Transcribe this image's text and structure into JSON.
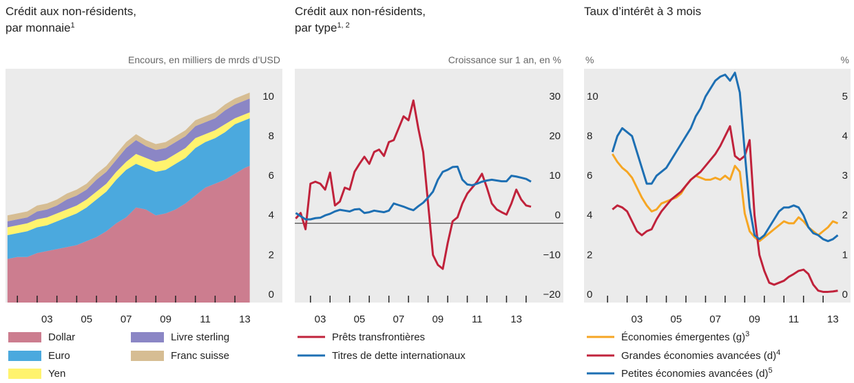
{
  "chart_data": [
    {
      "type": "stacked_area",
      "title": [
        "Crédit aux non-résidents,",
        "par monnaie"
      ],
      "title_footnote": "1",
      "y_label": "Encours, en milliers de mrds d’USD",
      "x": [
        1.5,
        2,
        2.5,
        3,
        3.5,
        4,
        4.5,
        5,
        5.5,
        6,
        6.5,
        7,
        7.5,
        8,
        8.5,
        9,
        9.5,
        10,
        10.5,
        11,
        11.5,
        12,
        12.5,
        13,
        13.5,
        13.75
      ],
      "series": [
        {
          "name": "Dollar",
          "color": "#cc7d8f",
          "values": [
            2.2,
            2.3,
            2.3,
            2.5,
            2.6,
            2.7,
            2.8,
            2.9,
            3.1,
            3.3,
            3.6,
            4.0,
            4.3,
            4.8,
            4.7,
            4.4,
            4.5,
            4.7,
            5.0,
            5.4,
            5.8,
            6.0,
            6.2,
            6.5,
            6.8,
            6.9
          ]
        },
        {
          "name": "Euro",
          "color": "#4ba9de",
          "values": [
            1.2,
            1.2,
            1.3,
            1.3,
            1.3,
            1.4,
            1.5,
            1.6,
            1.7,
            1.9,
            2.0,
            2.2,
            2.4,
            2.2,
            2.1,
            2.2,
            2.2,
            2.3,
            2.3,
            2.4,
            2.3,
            2.3,
            2.4,
            2.5,
            2.4,
            2.4
          ]
        },
        {
          "name": "Yen",
          "color": "#fff36e",
          "values": [
            0.4,
            0.4,
            0.4,
            0.4,
            0.4,
            0.4,
            0.4,
            0.4,
            0.4,
            0.4,
            0.4,
            0.4,
            0.4,
            0.5,
            0.5,
            0.5,
            0.5,
            0.5,
            0.5,
            0.5,
            0.4,
            0.4,
            0.4,
            0.3,
            0.3,
            0.3
          ]
        },
        {
          "name": "Livre sterling",
          "color": "#8b86c5",
          "values": [
            0.3,
            0.3,
            0.3,
            0.4,
            0.4,
            0.4,
            0.5,
            0.5,
            0.5,
            0.6,
            0.6,
            0.6,
            0.7,
            0.7,
            0.6,
            0.6,
            0.6,
            0.6,
            0.6,
            0.6,
            0.6,
            0.6,
            0.7,
            0.7,
            0.7,
            0.7
          ]
        },
        {
          "name": "Franc suisse",
          "color": "#d6bd93",
          "values": [
            0.3,
            0.3,
            0.3,
            0.3,
            0.3,
            0.3,
            0.3,
            0.3,
            0.3,
            0.3,
            0.3,
            0.3,
            0.3,
            0.3,
            0.3,
            0.3,
            0.3,
            0.3,
            0.3,
            0.3,
            0.3,
            0.3,
            0.3,
            0.3,
            0.3,
            0.3
          ]
        }
      ],
      "xlim": [
        1.4,
        15.4
      ],
      "ylim": [
        0,
        11.8
      ],
      "xticks": [
        {
          "value": 3.5,
          "label": "03"
        },
        {
          "value": 5.5,
          "label": "05"
        },
        {
          "value": 7.5,
          "label": "07"
        },
        {
          "value": 9.5,
          "label": "09"
        },
        {
          "value": 11.5,
          "label": "11"
        },
        {
          "value": 13.5,
          "label": "13"
        }
      ],
      "xminorticks": [
        2,
        3,
        4,
        5,
        6,
        7,
        8,
        9,
        10,
        11,
        12,
        13
      ],
      "yticks": [
        0,
        2,
        4,
        6,
        8,
        10
      ]
    },
    {
      "type": "line",
      "title": [
        "Crédit aux non-résidents,",
        "par type"
      ],
      "title_footnote": "1, 2",
      "y_label": "Croissance sur 1 an, en %",
      "x": [
        2.25,
        2.5,
        2.75,
        3,
        3.25,
        3.5,
        3.75,
        4,
        4.25,
        4.5,
        4.75,
        5,
        5.25,
        5.5,
        5.75,
        6,
        6.25,
        6.5,
        6.75,
        7,
        7.25,
        7.5,
        7.75,
        8,
        8.25,
        8.5,
        8.75,
        9,
        9.25,
        9.5,
        9.75,
        10,
        10.25,
        10.5,
        10.75,
        11,
        11.25,
        11.5,
        11.75,
        12,
        12.25,
        12.5,
        12.75,
        13,
        13.25,
        13.5,
        13.75,
        14,
        14.25
      ],
      "series": [
        {
          "name": "Prêts transfrontières",
          "color": "#c0223b",
          "values": [
            1.2,
            2.6,
            -1.5,
            10,
            10.5,
            10,
            8.5,
            12.8,
            4.5,
            5.5,
            9,
            8.5,
            13,
            15,
            16.8,
            15,
            18,
            18.6,
            17,
            20.5,
            21,
            24,
            27,
            26,
            31,
            24,
            18,
            5,
            -8,
            -10.5,
            -11.5,
            -5,
            0.5,
            1.5,
            5,
            7.5,
            9,
            10.5,
            12.5,
            9,
            5,
            3.5,
            2.8,
            2.2,
            5,
            8.5,
            6,
            4.5,
            4.2
          ]
        },
        {
          "name": "Titres de dette internationaux",
          "color": "#1d6fb3",
          "values": [
            2.6,
            1.8,
            1.0,
            1.0,
            1.3,
            1.4,
            2.0,
            2.4,
            3.0,
            3.4,
            3.2,
            3.0,
            3.5,
            3.6,
            2.6,
            2.8,
            3.2,
            3.0,
            2.8,
            3.2,
            5.0,
            4.6,
            4.2,
            3.7,
            3.3,
            4.3,
            5.2,
            6.5,
            8.0,
            11,
            13,
            13.5,
            14.2,
            14.3,
            11,
            9.8,
            9.6,
            10,
            10.5,
            10.8,
            11,
            10.8,
            10.6,
            10.6,
            12,
            11.8,
            11.5,
            11.2,
            10.5
          ]
        }
      ],
      "xlim": [
        2.2,
        15.9
      ],
      "ylim": [
        -20,
        39
      ],
      "zero_line": true,
      "xticks": [
        {
          "value": 3.5,
          "label": "03"
        },
        {
          "value": 5.5,
          "label": "05"
        },
        {
          "value": 7.5,
          "label": "07"
        },
        {
          "value": 9.5,
          "label": "09"
        },
        {
          "value": 11.5,
          "label": "11"
        },
        {
          "value": 13.5,
          "label": "13"
        }
      ],
      "xminorticks": [
        3,
        4,
        5,
        6,
        7,
        8,
        9,
        10,
        11,
        12,
        13,
        14
      ],
      "yticks": [
        {
          "value": -20,
          "label": "−20"
        },
        {
          "value": -10,
          "label": "−10"
        },
        0,
        10,
        20,
        30
      ]
    },
    {
      "type": "line",
      "title": [
        "Taux d’intérêt à 3 mois"
      ],
      "y_label": "%",
      "y2_label": "%",
      "x": [
        2.25,
        2.5,
        2.75,
        3,
        3.25,
        3.5,
        3.75,
        4,
        4.25,
        4.5,
        4.75,
        5,
        5.25,
        5.5,
        5.75,
        6,
        6.25,
        6.5,
        6.75,
        7,
        7.25,
        7.5,
        7.75,
        8,
        8.25,
        8.5,
        8.75,
        9,
        9.25,
        9.5,
        9.75,
        10,
        10.25,
        10.5,
        10.75,
        11,
        11.25,
        11.5,
        11.75,
        12,
        12.25,
        12.5,
        12.75,
        13,
        13.25,
        13.5,
        13.75
      ],
      "series": [
        {
          "name": "Économies émergentes (g)",
          "footnote": "3",
          "color": "#f6a623",
          "values": [
            7.5,
            7.1,
            6.8,
            6.6,
            6.3,
            5.8,
            5.3,
            4.9,
            4.6,
            4.7,
            5.0,
            5.1,
            5.2,
            5.3,
            5.5,
            5.9,
            6.2,
            6.4,
            6.3,
            6.2,
            6.2,
            6.3,
            6.2,
            6.4,
            6.2,
            6.9,
            6.6,
            4.5,
            3.6,
            3.3,
            3.1,
            3.3,
            3.5,
            3.7,
            3.9,
            4.1,
            4.0,
            4.0,
            4.3,
            4.1,
            3.8,
            3.6,
            3.4,
            3.6,
            3.8,
            4.1,
            4.0
          ]
        },
        {
          "name": "Grandes économies avancées (d)",
          "footnote": "4",
          "color": "#c0223b",
          "axis": "y2",
          "values": [
            2.35,
            2.45,
            2.4,
            2.3,
            2.05,
            1.8,
            1.7,
            1.8,
            1.85,
            2.1,
            2.3,
            2.45,
            2.6,
            2.7,
            2.8,
            2.95,
            3.1,
            3.2,
            3.3,
            3.45,
            3.6,
            3.75,
            3.95,
            4.2,
            4.45,
            3.7,
            3.6,
            3.7,
            4.1,
            2.2,
            1.2,
            0.8,
            0.5,
            0.45,
            0.5,
            0.55,
            0.65,
            0.72,
            0.8,
            0.83,
            0.72,
            0.45,
            0.3,
            0.27,
            0.27,
            0.28,
            0.3
          ]
        },
        {
          "name": "Petites économies avancées (d)",
          "footnote": "5",
          "color": "#1d6fb3",
          "axis": "y2",
          "values": [
            3.8,
            4.2,
            4.4,
            4.3,
            4.2,
            3.8,
            3.4,
            3.0,
            3.0,
            3.2,
            3.3,
            3.4,
            3.6,
            3.8,
            4.0,
            4.2,
            4.4,
            4.7,
            4.9,
            5.2,
            5.4,
            5.6,
            5.7,
            5.75,
            5.6,
            5.8,
            5.3,
            3.8,
            2.4,
            1.7,
            1.6,
            1.7,
            1.9,
            2.1,
            2.3,
            2.4,
            2.4,
            2.45,
            2.4,
            2.2,
            1.9,
            1.75,
            1.7,
            1.6,
            1.55,
            1.6,
            1.7
          ]
        }
      ],
      "xlim": [
        0.8,
        14.4
      ],
      "ylim": [
        0,
        11.8
      ],
      "y2lim": [
        0,
        5.9
      ],
      "xticks": [
        {
          "value": 3.5,
          "label": "03"
        },
        {
          "value": 5.5,
          "label": "05"
        },
        {
          "value": 7.5,
          "label": "07"
        },
        {
          "value": 9.5,
          "label": "09"
        },
        {
          "value": 11.5,
          "label": "11"
        },
        {
          "value": 13.5,
          "label": "13"
        }
      ],
      "xminorticks": [
        2,
        3,
        4,
        5,
        6,
        7,
        8,
        9,
        10,
        11,
        12,
        13
      ],
      "yticks": [
        0,
        2,
        4,
        6,
        8,
        10
      ],
      "y2ticks": [
        0,
        1,
        2,
        3,
        4,
        5
      ]
    }
  ]
}
